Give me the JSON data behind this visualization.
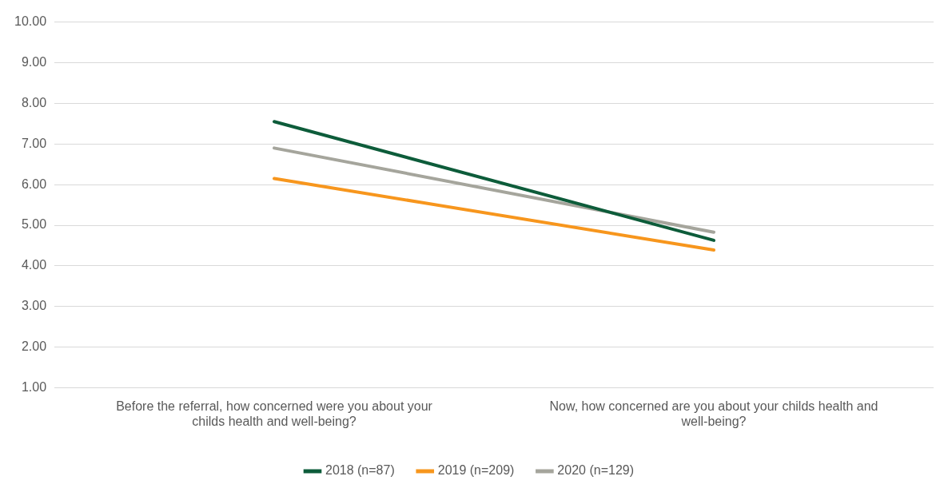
{
  "chart_data": {
    "type": "line",
    "categories": [
      "Before the referral, how concerned were you about your childs health and well-being?",
      "Now, how concerned are you about your childs health and well-being?"
    ],
    "series": [
      {
        "name": "2018 (n=87)",
        "color": "#0d5c3a",
        "values": [
          7.55,
          4.63
        ]
      },
      {
        "name": "2019 (n=209)",
        "color": "#f7961d",
        "values": [
          6.15,
          4.39
        ]
      },
      {
        "name": "2020 (n=129)",
        "color": "#a5a59c",
        "values": [
          6.9,
          4.83
        ]
      }
    ],
    "ylim": [
      1,
      10
    ],
    "yticks": [
      {
        "value": 1,
        "label": "1.00"
      },
      {
        "value": 2,
        "label": "2.00"
      },
      {
        "value": 3,
        "label": "3.00"
      },
      {
        "value": 4,
        "label": "4.00"
      },
      {
        "value": 5,
        "label": "5.00"
      },
      {
        "value": 6,
        "label": "6.00"
      },
      {
        "value": 7,
        "label": "7.00"
      },
      {
        "value": 8,
        "label": "8.00"
      },
      {
        "value": 9,
        "label": "9.00"
      },
      {
        "value": 10,
        "label": "10.00"
      }
    ],
    "grid": "y",
    "legend": "bottom",
    "marker": "none",
    "line_style": "solid"
  }
}
